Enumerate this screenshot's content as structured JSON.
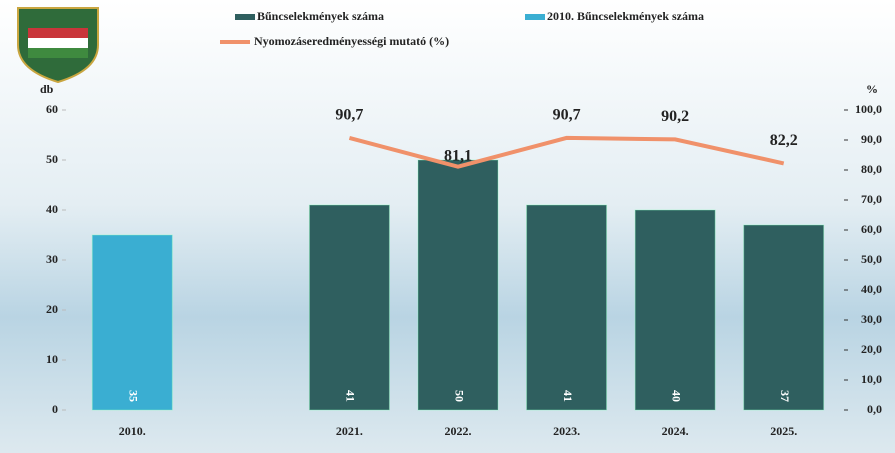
{
  "chart_data": {
    "type": "bar_line",
    "categories": [
      "2010.",
      null,
      "2021.",
      "2022.",
      "2023.",
      "2024.",
      "2025."
    ],
    "series": [
      {
        "name": "Bűncselekmények száma",
        "color": "#2f5f5f",
        "values": [
          null,
          null,
          41,
          50,
          41,
          40,
          37
        ]
      },
      {
        "name": "2010. Bűncselekmények száma",
        "color": "#3aaed2",
        "values": [
          35,
          null,
          null,
          null,
          null,
          null,
          null
        ]
      },
      {
        "name": "Nyomozáseredményességi mutató (%)",
        "color": "#f0916a",
        "axis": "y2",
        "type": "line",
        "values": [
          null,
          null,
          90.7,
          81.1,
          90.7,
          90.2,
          82.2
        ],
        "value_labels": [
          null,
          null,
          "90,7",
          "81,1",
          "90,7",
          "90,2",
          "82,2"
        ]
      }
    ],
    "y_label": "db",
    "y2_label": "%",
    "ylim": [
      0,
      60
    ],
    "yticks": [
      0,
      10,
      20,
      30,
      40,
      50,
      60
    ],
    "y2lim": [
      0,
      100
    ],
    "y2ticks": [
      {
        "value": 0,
        "label": "0,0"
      },
      {
        "value": 10,
        "label": "10,0"
      },
      {
        "value": 20,
        "label": "20,0"
      },
      {
        "value": 30,
        "label": "30,0"
      },
      {
        "value": 40,
        "label": "40,0"
      },
      {
        "value": 50,
        "label": "50,0"
      },
      {
        "value": 60,
        "label": "60,0"
      },
      {
        "value": 70,
        "label": "70,0"
      },
      {
        "value": 80,
        "label": "80,0"
      },
      {
        "value": 90,
        "label": "90,0"
      },
      {
        "value": 100,
        "label": "100,0"
      }
    ]
  }
}
